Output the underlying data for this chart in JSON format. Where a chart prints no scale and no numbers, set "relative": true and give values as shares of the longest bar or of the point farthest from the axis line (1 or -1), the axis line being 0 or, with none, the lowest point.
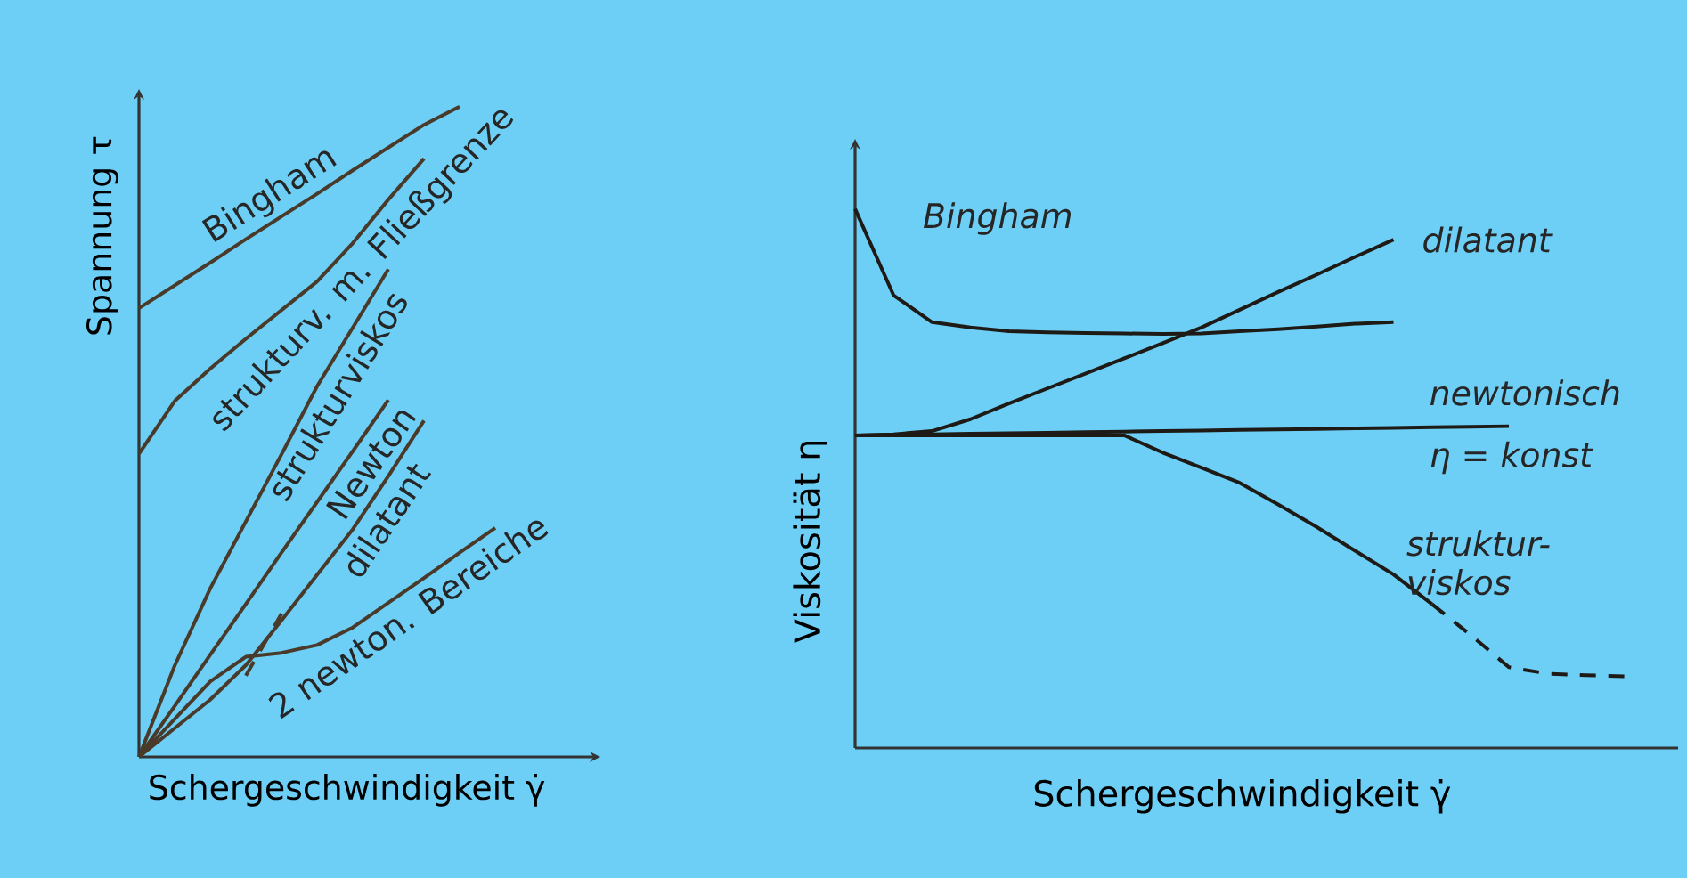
{
  "chart_data": [
    {
      "type": "line",
      "relative": true,
      "xlabel": "Schergeschwindigkeit γ̇",
      "ylabel": "Spannung τ",
      "categories": [
        null,
        null,
        null,
        null,
        null,
        null,
        null,
        null,
        null,
        null,
        null
      ],
      "series": [
        {
          "name": "Bingham",
          "color": "#4a3a2a",
          "values": [
            0.69,
            0.725,
            0.76,
            0.796,
            0.831,
            0.866,
            0.902,
            0.937,
            0.972,
            1.0,
            null
          ]
        },
        {
          "name": "strukturv. m. Fließgrenze",
          "color": "#4a3a2a",
          "values": [
            0.466,
            0.547,
            0.597,
            0.643,
            0.687,
            0.731,
            0.79,
            0.857,
            0.92,
            null,
            null
          ]
        },
        {
          "name": "strukturviskos",
          "color": "#4a3a2a",
          "values": [
            0,
            0.14,
            0.259,
            0.362,
            0.465,
            0.57,
            0.66,
            0.75,
            null,
            null,
            null
          ]
        },
        {
          "name": "Newton",
          "color": "#4a3a2a",
          "values": [
            0,
            0.078,
            0.157,
            0.235,
            0.314,
            0.392,
            0.47,
            0.549,
            null,
            null,
            null
          ]
        },
        {
          "name": "dilatant",
          "color": "#4a3a2a",
          "values": [
            0,
            0.044,
            0.088,
            0.141,
            0.21,
            0.28,
            0.35,
            0.432,
            0.517,
            null,
            null
          ]
        },
        {
          "name": "2 newton. Bereiche",
          "color": "#4a3a2a",
          "values": [
            0,
            0.058,
            0.116,
            0.154,
            0.16,
            0.172,
            0.199,
            0.237,
            0.275,
            0.314,
            0.352
          ]
        },
        {
          "color": "#4a3a2a",
          "line_style": "dashed",
          "values": [
            null,
            null,
            null,
            0.125,
            0.22,
            null,
            null,
            null,
            null,
            null,
            null
          ]
        }
      ]
    },
    {
      "type": "line",
      "relative": true,
      "xlabel": "Schergeschwindigkeit γ̇",
      "ylabel": "Viskosität η",
      "annotations": [
        "η = konst"
      ],
      "categories": [
        null,
        null,
        null,
        null,
        null,
        null,
        null,
        null,
        null,
        null,
        null,
        null,
        null,
        null,
        null,
        null,
        null,
        null,
        null,
        null,
        null
      ],
      "series": [
        {
          "name": "Bingham",
          "color": "#1e1a16",
          "values": [
            1.0,
            0.84,
            0.79,
            0.78,
            0.773,
            0.771,
            0.77,
            0.769,
            0.768,
            0.769,
            0.773,
            0.777,
            0.782,
            0.787,
            0.79,
            null,
            null,
            null,
            null,
            null,
            null
          ]
        },
        {
          "name": "dilatant",
          "color": "#1e1a16",
          "values": [
            0.58,
            0.582,
            0.588,
            0.61,
            0.639,
            0.667,
            0.695,
            0.723,
            0.751,
            0.78,
            0.813,
            0.846,
            0.878,
            0.911,
            0.943,
            null,
            null,
            null,
            null,
            null,
            null
          ]
        },
        {
          "name": "newtonisch",
          "color": "#1e1a16",
          "values": [
            0.58,
            0.581,
            0.582,
            0.583,
            0.584,
            0.585,
            0.586,
            0.587,
            0.588,
            0.589,
            0.59,
            0.591,
            0.592,
            0.593,
            0.594,
            0.595,
            0.596,
            0.597,
            null,
            null,
            null
          ]
        },
        {
          "name": "struktur-viskos",
          "color": "#1e1a16",
          "values": [
            0.58,
            0.58,
            0.58,
            0.58,
            0.58,
            0.58,
            0.58,
            0.58,
            0.548,
            0.52,
            0.492,
            0.452,
            0.41,
            0.366,
            0.322,
            0.267,
            null,
            null,
            null,
            null,
            null
          ]
        },
        {
          "color": "#1e1a16",
          "line_style": "dashed",
          "values": [
            null,
            null,
            null,
            null,
            null,
            null,
            null,
            null,
            null,
            null,
            null,
            null,
            null,
            null,
            null,
            0.267,
            0.21,
            0.15,
            0.138,
            0.135,
            0.133
          ]
        }
      ]
    }
  ]
}
